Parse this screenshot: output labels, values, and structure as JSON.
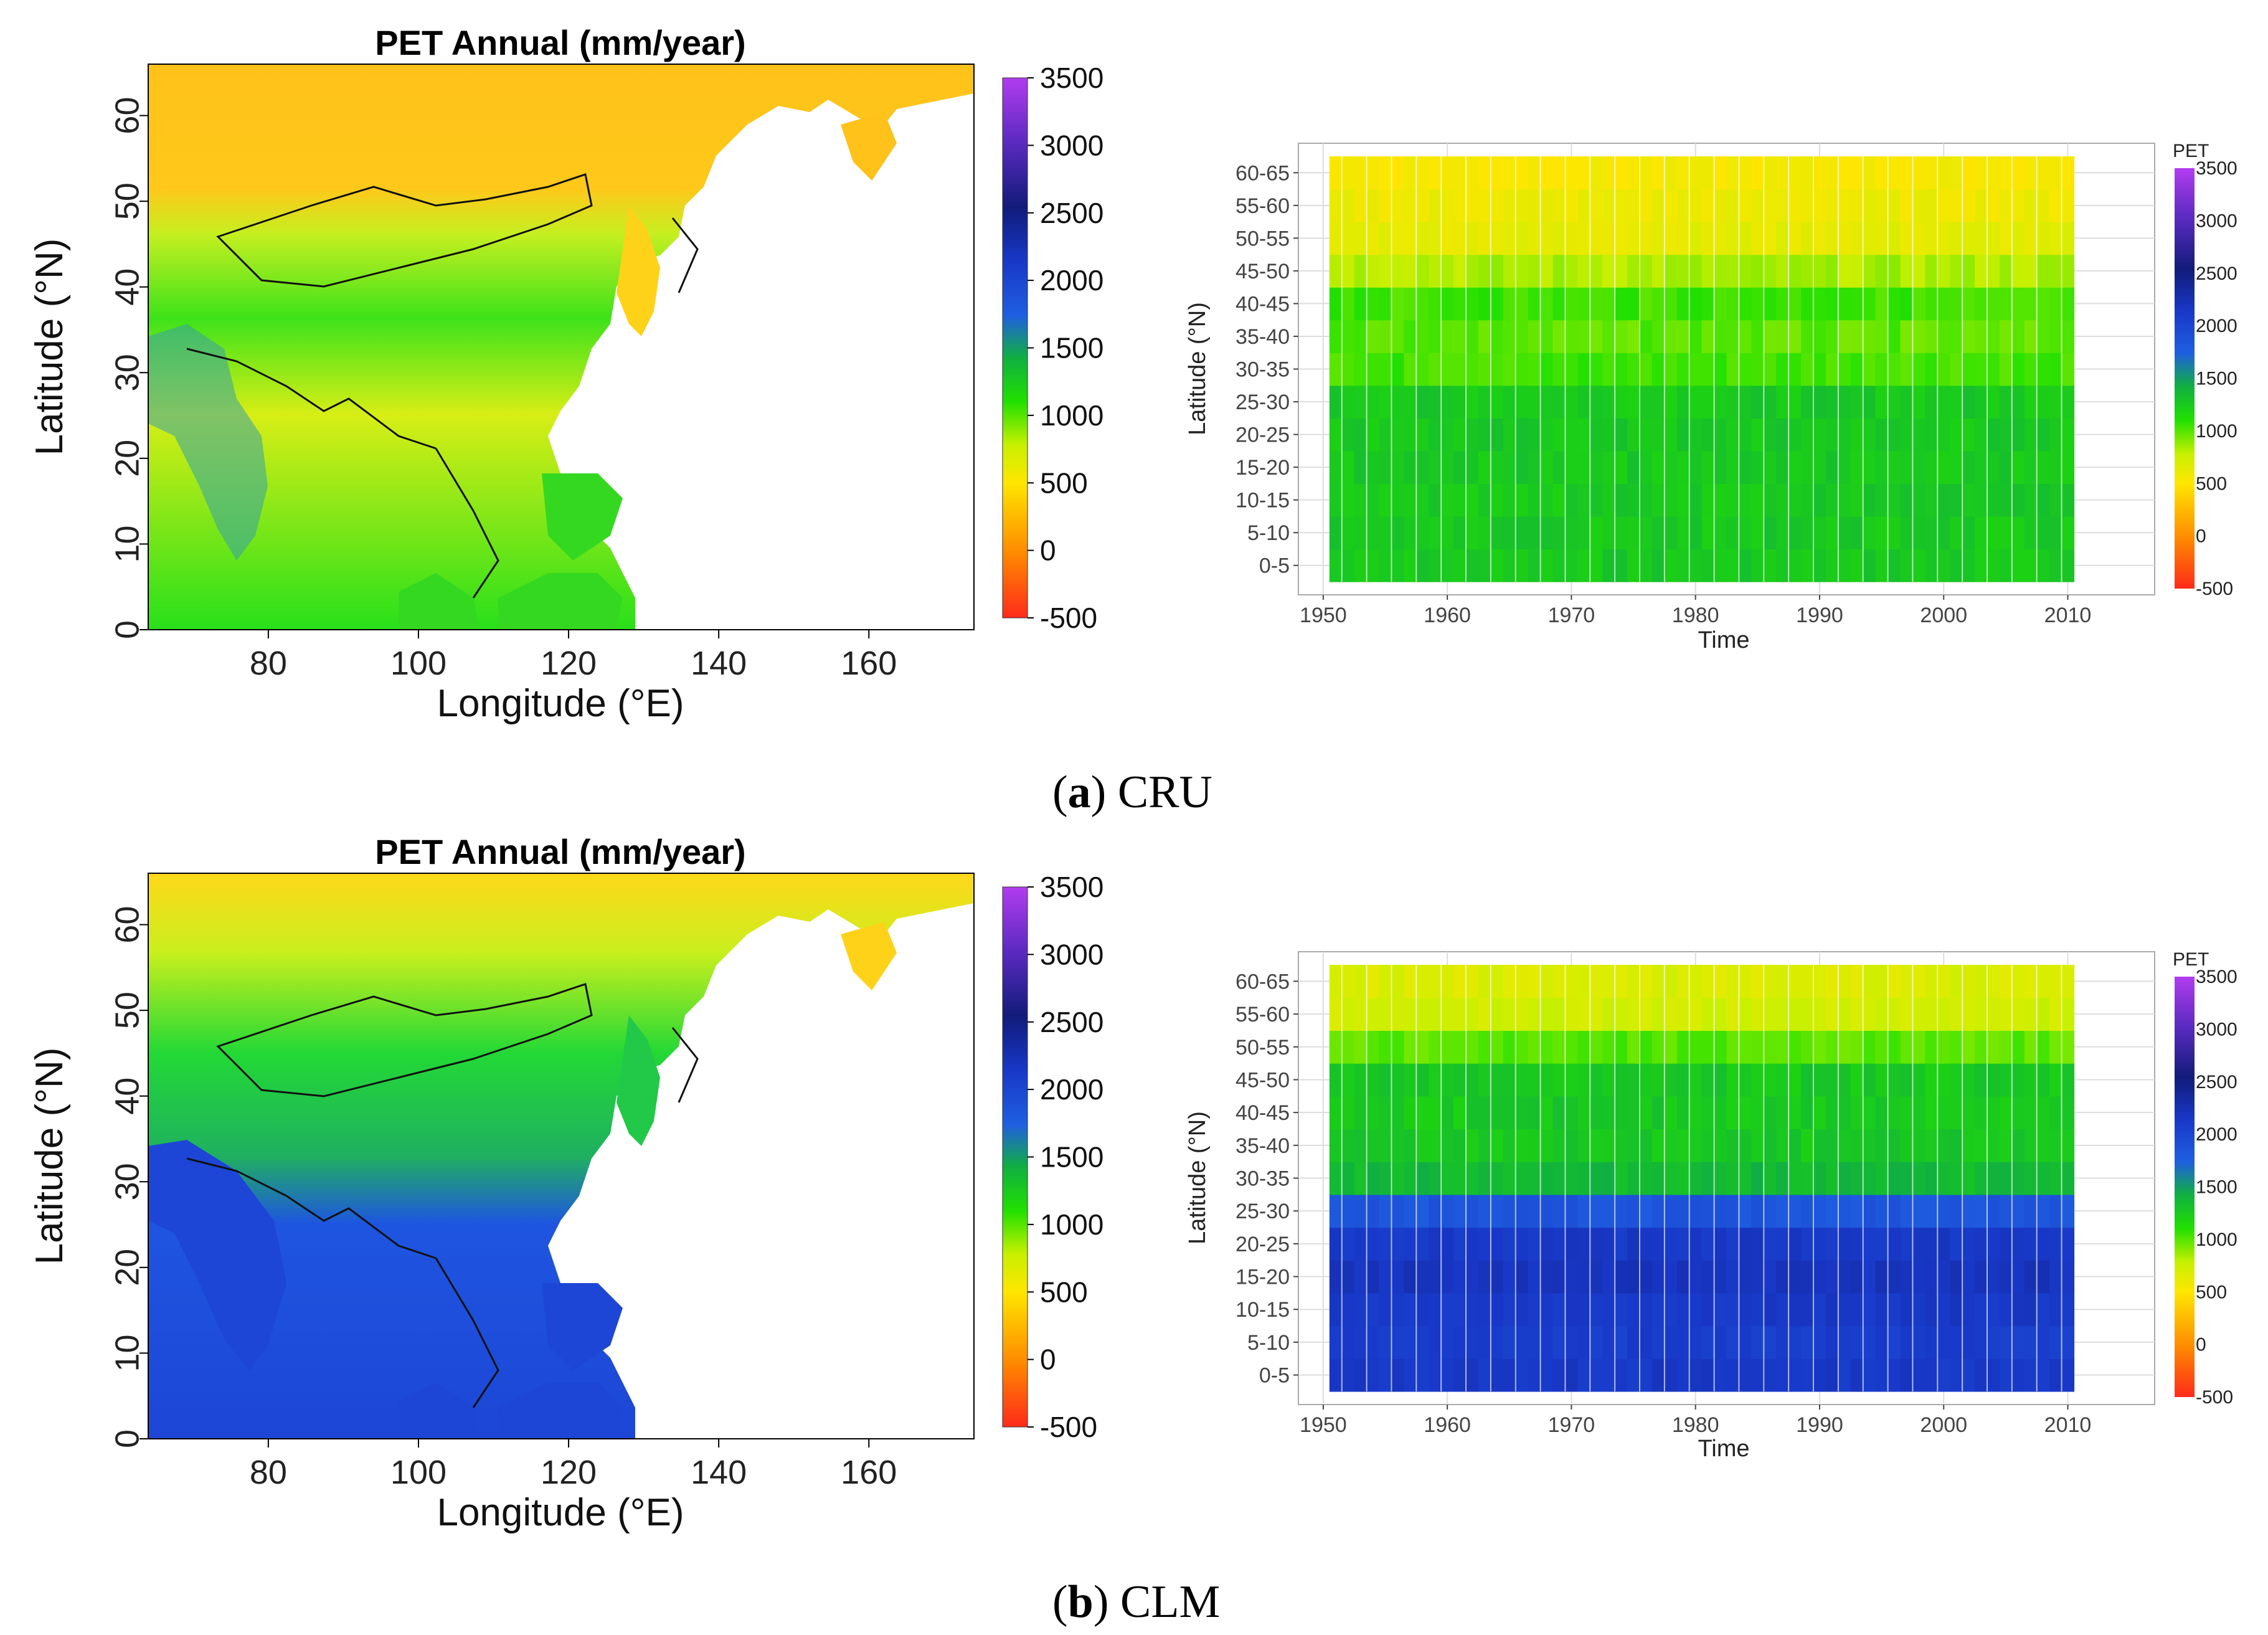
{
  "panels": [
    {
      "id": "a",
      "caption_letter": "a",
      "caption_text": "CRU",
      "map": {
        "title": "PET Annual (mm/year)",
        "xlabel": "Longitude (°E)",
        "ylabel": "Latitude (°N)",
        "xticks": [
          "80",
          "100",
          "120",
          "140",
          "160"
        ],
        "yticks": [
          "0",
          "10",
          "20",
          "30",
          "40",
          "50",
          "60"
        ],
        "colorbar_ticks": [
          "3500",
          "3000",
          "2500",
          "2000",
          "1500",
          "1000",
          "500",
          "0",
          "-500"
        ]
      },
      "heatmap": {
        "xlabel": "Time",
        "ylabel": "Latitude (°N)",
        "legend_title": "PET",
        "xticks": [
          "1950",
          "1960",
          "1970",
          "1980",
          "1990",
          "2000",
          "2010"
        ],
        "colorbar_ticks": [
          "3500",
          "3000",
          "2500",
          "2000",
          "1500",
          "1000",
          "500",
          "0",
          "-500"
        ]
      }
    },
    {
      "id": "b",
      "caption_letter": "b",
      "caption_text": "CLM",
      "map": {
        "title": "PET Annual (mm/year)",
        "xlabel": "Longitude (°E)",
        "ylabel": "Latitude (°N)",
        "xticks": [
          "80",
          "100",
          "120",
          "140",
          "160"
        ],
        "yticks": [
          "0",
          "10",
          "20",
          "30",
          "40",
          "50",
          "60"
        ],
        "colorbar_ticks": [
          "3500",
          "3000",
          "2500",
          "2000",
          "1500",
          "1000",
          "500",
          "0",
          "-500"
        ]
      },
      "heatmap": {
        "xlabel": "Time",
        "ylabel": "Latitude (°N)",
        "legend_title": "PET",
        "xticks": [
          "1950",
          "1960",
          "1970",
          "1980",
          "1990",
          "2000",
          "2010"
        ],
        "colorbar_ticks": [
          "3500",
          "3000",
          "2500",
          "2000",
          "1500",
          "1000",
          "500",
          "0",
          "-500"
        ]
      }
    }
  ],
  "chart_data": [
    {
      "type": "heatmap",
      "panel": "a",
      "title": "PET Annual (mm/year)",
      "subtitle": "CRU map",
      "xlabel": "Longitude (°E)",
      "ylabel": "Latitude (°N)",
      "xlim": [
        64,
        174
      ],
      "ylim": [
        0,
        66
      ],
      "colorbar_range": [
        -500,
        3500
      ]
    },
    {
      "type": "heatmap",
      "panel": "a",
      "xlabel": "Time",
      "ylabel": "Latitude (°N)",
      "legend": "PET",
      "xlim": [
        1948,
        2017
      ],
      "x_start": 1951,
      "x_end": 2010,
      "categories": [
        "0-5",
        "5-10",
        "10-15",
        "15-20",
        "20-25",
        "25-30",
        "30-35",
        "35-40",
        "40-45",
        "45-50",
        "50-55",
        "55-60",
        "60-65"
      ],
      "values": [
        1250,
        1250,
        1250,
        1250,
        1250,
        1250,
        1050,
        1000,
        1050,
        850,
        650,
        600,
        550
      ],
      "colorbar_range": [
        -500,
        3500
      ]
    },
    {
      "type": "heatmap",
      "panel": "b",
      "title": "PET Annual (mm/year)",
      "subtitle": "CLM map",
      "xlabel": "Longitude (°E)",
      "ylabel": "Latitude (°N)",
      "xlim": [
        64,
        174
      ],
      "ylim": [
        0,
        66
      ],
      "colorbar_range": [
        -500,
        3500
      ]
    },
    {
      "type": "heatmap",
      "panel": "b",
      "xlabel": "Time",
      "ylabel": "Latitude (°N)",
      "legend": "PET",
      "xlim": [
        1948,
        2017
      ],
      "x_start": 1951,
      "x_end": 2010,
      "categories": [
        "0-5",
        "5-10",
        "10-15",
        "15-20",
        "20-25",
        "25-30",
        "30-35",
        "35-40",
        "40-45",
        "45-50",
        "50-55",
        "55-60",
        "60-65"
      ],
      "values": [
        2150,
        2100,
        2150,
        2200,
        2150,
        1850,
        1350,
        1250,
        1250,
        1250,
        1000,
        750,
        700
      ],
      "colorbar_range": [
        -500,
        3500
      ]
    }
  ]
}
